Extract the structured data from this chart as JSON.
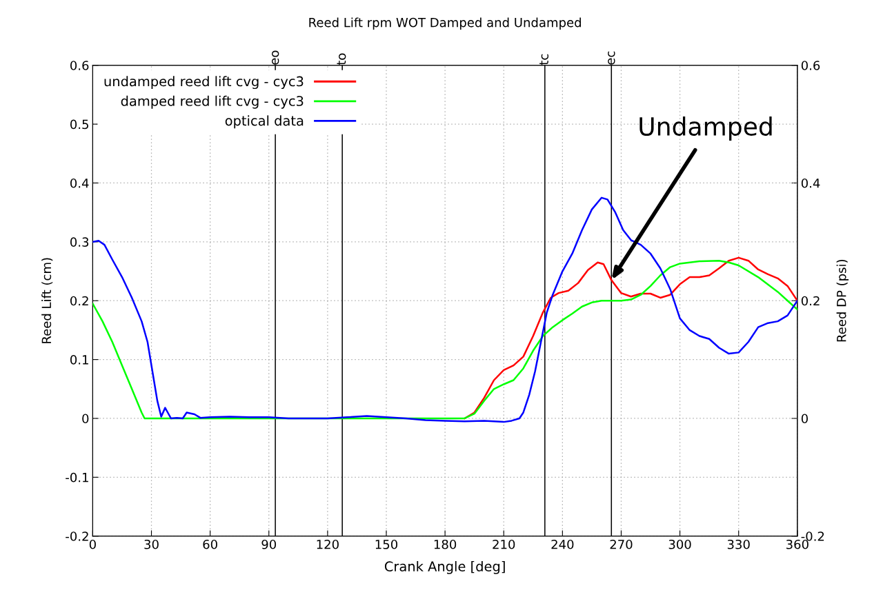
{
  "chart_data": {
    "type": "line",
    "title": "Reed Lift rpm WOT Damped and Undamped",
    "xlabel": "Crank Angle [deg]",
    "ylabel": "Reed Lift (cm)",
    "y2label": "Reed DP (psi)",
    "xlim": [
      0,
      360
    ],
    "xticks": [
      0,
      30,
      60,
      90,
      120,
      150,
      180,
      210,
      240,
      270,
      300,
      330,
      360
    ],
    "ylim": [
      -0.2,
      0.6
    ],
    "yticks": [
      -0.2,
      -0.1,
      0,
      0.1,
      0.2,
      0.3,
      0.4,
      0.5,
      0.6
    ],
    "y2lim": [
      -0.2,
      0.6
    ],
    "y2ticks": [
      -0.2,
      0,
      0.2,
      0.4,
      0.6
    ],
    "ref_lines": [
      {
        "axis": "x",
        "value": 93.3,
        "label": "eo",
        "color": "#000000"
      },
      {
        "axis": "x",
        "value": 127.5,
        "label": "to",
        "color": "#000000"
      },
      {
        "axis": "x",
        "value": 231,
        "label": "tc",
        "color": "#000000"
      },
      {
        "axis": "x",
        "value": 265,
        "label": "ec",
        "color": "#000000"
      }
    ],
    "grid": true,
    "legend": "top left",
    "marker": "none",
    "line_style": "solid",
    "annotations": [
      {
        "text": "Undamped",
        "x": 265,
        "y": 0.235
      }
    ],
    "series": [
      {
        "name": "undamped reed lift cvg - cyc3",
        "color": "#ff0000",
        "x": [
          190,
          195,
          200,
          205,
          210,
          215,
          220,
          225,
          230,
          234,
          238,
          243,
          248,
          253,
          258,
          261,
          265,
          270,
          275,
          280,
          285,
          290,
          295,
          300,
          305,
          310,
          315,
          320,
          325,
          330,
          335,
          340,
          345,
          350,
          355,
          360
        ],
        "values": [
          0,
          0.01,
          0.035,
          0.065,
          0.082,
          0.09,
          0.105,
          0.14,
          0.18,
          0.205,
          0.213,
          0.217,
          0.23,
          0.252,
          0.265,
          0.262,
          0.235,
          0.213,
          0.207,
          0.212,
          0.212,
          0.205,
          0.21,
          0.228,
          0.24,
          0.24,
          0.243,
          0.255,
          0.268,
          0.273,
          0.268,
          0.253,
          0.245,
          0.238,
          0.225,
          0.2
        ]
      },
      {
        "name": "damped reed lift cvg - cyc3",
        "color": "#00ff00",
        "x": [
          0,
          5,
          10,
          15,
          20,
          25,
          26.5,
          190,
          195,
          200,
          205,
          210,
          215,
          220,
          225,
          230,
          235,
          240,
          245,
          250,
          255,
          260,
          270,
          275,
          280,
          285,
          290,
          295,
          300,
          310,
          320,
          325,
          330,
          340,
          350,
          355,
          360
        ],
        "values": [
          0.195,
          0.165,
          0.13,
          0.09,
          0.05,
          0.01,
          0,
          0,
          0.008,
          0.03,
          0.05,
          0.058,
          0.065,
          0.085,
          0.115,
          0.14,
          0.155,
          0.167,
          0.178,
          0.19,
          0.197,
          0.2,
          0.2,
          0.202,
          0.21,
          0.225,
          0.243,
          0.257,
          0.263,
          0.267,
          0.268,
          0.265,
          0.26,
          0.24,
          0.215,
          0.2,
          0.185
        ]
      },
      {
        "name": "optical data",
        "color": "#0000ff",
        "x": [
          0,
          3,
          6,
          10,
          15,
          20,
          25,
          28,
          31,
          33,
          35,
          37,
          38,
          40,
          43,
          46,
          48,
          52,
          55,
          60,
          70,
          80,
          90,
          100,
          120,
          130,
          140,
          150,
          160,
          170,
          180,
          190,
          200,
          210,
          214,
          218,
          220,
          223,
          226,
          229,
          232,
          235,
          240,
          245,
          250,
          255,
          260,
          263,
          267,
          271,
          275,
          280,
          285,
          290,
          295,
          300,
          305,
          310,
          315,
          320,
          325,
          330,
          335,
          340,
          345,
          350,
          355,
          360
        ],
        "values": [
          0.3,
          0.302,
          0.295,
          0.27,
          0.24,
          0.205,
          0.165,
          0.13,
          0.07,
          0.03,
          0.003,
          0.018,
          0.012,
          0,
          0.001,
          0,
          0.01,
          0.007,
          0.001,
          0.002,
          0.003,
          0.002,
          0.002,
          0,
          0,
          0.002,
          0.004,
          0.002,
          0,
          -0.003,
          -0.004,
          -0.005,
          -0.004,
          -0.006,
          -0.004,
          0,
          0.01,
          0.04,
          0.08,
          0.13,
          0.18,
          0.21,
          0.25,
          0.28,
          0.32,
          0.355,
          0.375,
          0.372,
          0.35,
          0.32,
          0.303,
          0.295,
          0.28,
          0.255,
          0.22,
          0.17,
          0.15,
          0.14,
          0.135,
          0.12,
          0.11,
          0.112,
          0.13,
          0.155,
          0.162,
          0.165,
          0.175,
          0.2
        ]
      }
    ]
  }
}
